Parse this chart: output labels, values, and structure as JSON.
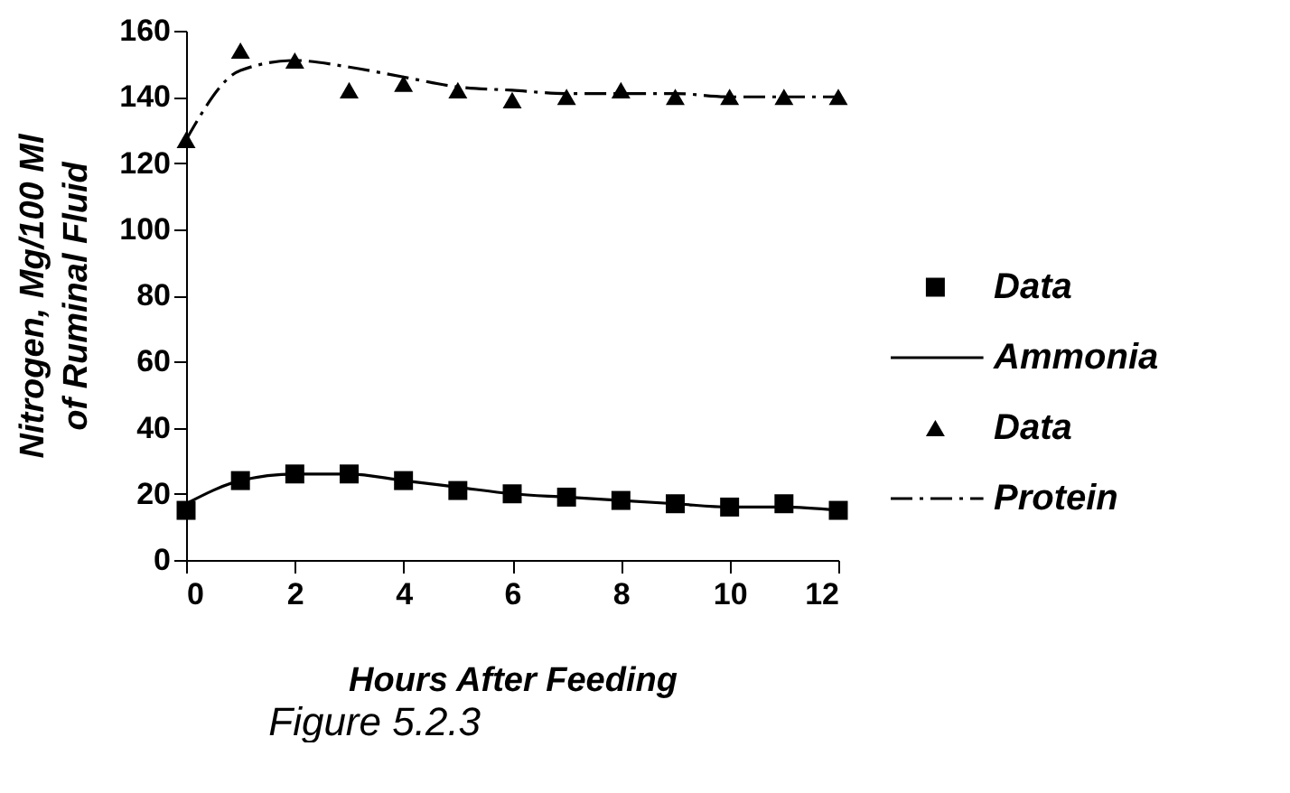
{
  "chart_data": {
    "type": "line",
    "title": "Figure 5.2.3",
    "xlabel": "Hours After Feeding",
    "ylabel": "Nitrogen, Mg/100 Ml\nof Ruminal Fluid",
    "x": [
      0,
      1,
      2,
      3,
      4,
      5,
      6,
      7,
      8,
      9,
      10,
      11,
      12
    ],
    "series": [
      {
        "name": "Data",
        "type": "scatter",
        "marker": "square",
        "color": "#000000",
        "values": [
          15,
          24,
          26,
          26,
          24,
          21,
          20,
          19,
          18,
          17,
          16,
          17,
          15
        ]
      },
      {
        "name": "Ammonia",
        "marker": "none",
        "line_style": "solid",
        "color": "#000000",
        "values": [
          17,
          24,
          26,
          26,
          24,
          22,
          20,
          19,
          18,
          17,
          16,
          16,
          15
        ]
      },
      {
        "name": "Data",
        "type": "scatter",
        "marker": "triangle",
        "color": "#000000",
        "values": [
          127,
          154,
          151,
          142,
          144,
          142,
          139,
          140,
          142,
          140,
          140,
          140,
          140
        ]
      },
      {
        "name": "Protein",
        "marker": "none",
        "line_style": "dashed",
        "color": "#000000",
        "values": [
          127,
          148,
          151,
          149,
          146,
          143,
          142,
          141,
          141,
          141,
          140,
          140,
          140
        ]
      }
    ],
    "xlim": [
      0,
      12
    ],
    "xticks": [
      0,
      2,
      4,
      6,
      8,
      10,
      12
    ],
    "ylim": [
      0,
      160
    ],
    "yticks": [
      0,
      20,
      40,
      60,
      80,
      100,
      120,
      140,
      160
    ],
    "grid": false,
    "legend": "right"
  }
}
